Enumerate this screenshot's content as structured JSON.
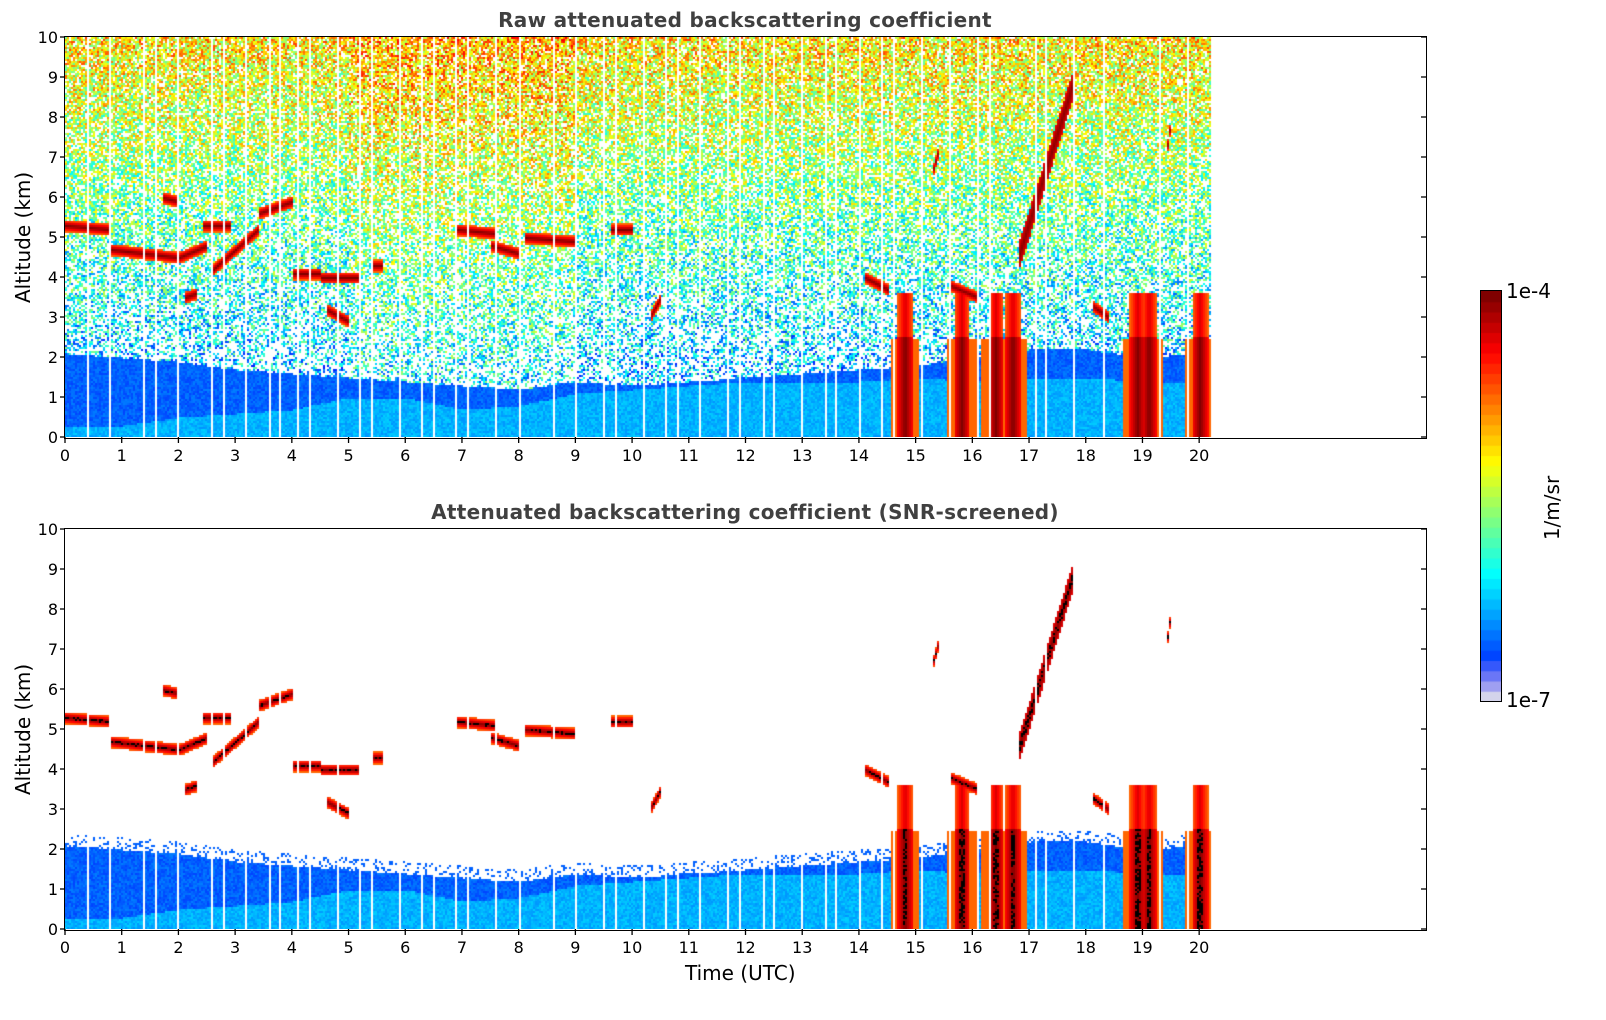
{
  "chart_data": [
    {
      "type": "heatmap",
      "id": "raw",
      "title": "Raw attenuated backscattering coefficient",
      "xlabel": "",
      "ylabel": "Altitude (km)",
      "xlim": [
        0,
        24
      ],
      "ylim": [
        0,
        10
      ],
      "xticks": [
        "0",
        "1",
        "2",
        "3",
        "4",
        "5",
        "6",
        "7",
        "8",
        "9",
        "10",
        "11",
        "12",
        "13",
        "14",
        "15",
        "16",
        "17",
        "18",
        "19",
        "20"
      ],
      "yticks": [
        "0",
        "1",
        "2",
        "3",
        "4",
        "5",
        "6",
        "7",
        "8",
        "9",
        "10"
      ],
      "data_end_hour": 20.2,
      "noise_background": true,
      "screened": false
    },
    {
      "type": "heatmap",
      "id": "snr",
      "title": "Attenuated backscattering coefficient (SNR-screened)",
      "xlabel": "Time (UTC)",
      "ylabel": "Altitude (km)",
      "xlim": [
        0,
        24
      ],
      "ylim": [
        0,
        10
      ],
      "xticks": [
        "0",
        "1",
        "2",
        "3",
        "4",
        "5",
        "6",
        "7",
        "8",
        "9",
        "10",
        "11",
        "12",
        "13",
        "14",
        "15",
        "16",
        "17",
        "18",
        "19",
        "20"
      ],
      "yticks": [
        "0",
        "1",
        "2",
        "3",
        "4",
        "5",
        "6",
        "7",
        "8",
        "9",
        "10"
      ],
      "data_end_hour": 20.2,
      "noise_background": false,
      "screened": true
    }
  ],
  "colorbar": {
    "label": "1/m/sr",
    "max_label": "1e-4",
    "min_label": "1e-7",
    "scale": "log",
    "range": [
      1e-07,
      0.0001
    ],
    "colormap": "jet"
  },
  "features": {
    "boundary_layer_top_km": [
      [
        0,
        2.1
      ],
      [
        1,
        2.0
      ],
      [
        2,
        1.9
      ],
      [
        3,
        1.7
      ],
      [
        4,
        1.6
      ],
      [
        5,
        1.5
      ],
      [
        6,
        1.4
      ],
      [
        7,
        1.3
      ],
      [
        8,
        1.2
      ],
      [
        9,
        1.4
      ],
      [
        10,
        1.3
      ],
      [
        11,
        1.4
      ],
      [
        12,
        1.5
      ],
      [
        13,
        1.6
      ],
      [
        14,
        1.7
      ],
      [
        15,
        1.8
      ],
      [
        16,
        2.0
      ],
      [
        17,
        2.2
      ],
      [
        18,
        2.2
      ],
      [
        19,
        2.0
      ],
      [
        20,
        2.1
      ],
      [
        20.2,
        2.1
      ]
    ],
    "aerosol_top_km": [
      [
        0,
        0.3
      ],
      [
        1,
        0.3
      ],
      [
        2,
        0.5
      ],
      [
        3,
        0.6
      ],
      [
        4,
        0.7
      ],
      [
        5,
        1.0
      ],
      [
        6,
        1.0
      ],
      [
        7,
        0.7
      ],
      [
        8,
        0.8
      ],
      [
        9,
        1.1
      ],
      [
        10,
        1.2
      ],
      [
        11,
        1.3
      ],
      [
        12,
        1.4
      ],
      [
        13,
        1.4
      ],
      [
        14,
        1.4
      ],
      [
        15,
        1.5
      ],
      [
        16,
        1.4
      ],
      [
        17,
        1.5
      ],
      [
        18,
        1.5
      ],
      [
        19,
        1.4
      ],
      [
        20,
        1.4
      ]
    ],
    "cloud_segments": [
      {
        "t": [
          0.0,
          0.8
        ],
        "alt": [
          5.3,
          5.2
        ]
      },
      {
        "t": [
          0.8,
          2.0
        ],
        "alt": [
          4.7,
          4.5
        ]
      },
      {
        "t": [
          1.7,
          2.0
        ],
        "alt": [
          6.0,
          5.9
        ]
      },
      {
        "t": [
          2.0,
          2.5
        ],
        "alt": [
          4.5,
          4.8
        ]
      },
      {
        "t": [
          2.4,
          2.9
        ],
        "alt": [
          5.3,
          5.3
        ]
      },
      {
        "t": [
          2.6,
          3.4
        ],
        "alt": [
          4.2,
          5.2
        ]
      },
      {
        "t": [
          3.4,
          4.0
        ],
        "alt": [
          5.6,
          5.9
        ]
      },
      {
        "t": [
          2.1,
          2.3
        ],
        "alt": [
          3.5,
          3.6
        ]
      },
      {
        "t": [
          4.0,
          4.5
        ],
        "alt": [
          4.1,
          4.1
        ]
      },
      {
        "t": [
          4.5,
          5.2
        ],
        "alt": [
          4.0,
          4.0
        ]
      },
      {
        "t": [
          4.6,
          5.0
        ],
        "alt": [
          3.2,
          2.9
        ]
      },
      {
        "t": [
          5.4,
          5.6
        ],
        "alt": [
          4.3,
          4.3
        ]
      },
      {
        "t": [
          6.9,
          7.6
        ],
        "alt": [
          5.2,
          5.1
        ]
      },
      {
        "t": [
          7.5,
          8.0
        ],
        "alt": [
          4.8,
          4.6
        ]
      },
      {
        "t": [
          8.1,
          9.0
        ],
        "alt": [
          5.0,
          4.9
        ]
      },
      {
        "t": [
          9.6,
          10.0
        ],
        "alt": [
          5.2,
          5.2
        ]
      },
      {
        "t": [
          10.3,
          10.5
        ],
        "alt": [
          3.0,
          3.5
        ]
      },
      {
        "t": [
          14.1,
          14.5
        ],
        "alt": [
          4.0,
          3.7
        ]
      },
      {
        "t": [
          15.6,
          16.1
        ],
        "alt": [
          3.8,
          3.5
        ]
      },
      {
        "t": [
          15.3,
          15.4
        ],
        "alt": [
          6.7,
          7.2
        ]
      },
      {
        "t": [
          18.1,
          18.4
        ],
        "alt": [
          3.3,
          3.0
        ]
      },
      {
        "t": [
          19.4,
          19.5
        ],
        "alt": [
          7.0,
          8.0
        ]
      }
    ],
    "rising_plume": {
      "t": [
        16.8,
        17.8
      ],
      "alt": [
        4.5,
        9.0
      ]
    },
    "precip_columns_hours": [
      14.8,
      15.8,
      16.4,
      16.7,
      18.9,
      19.1,
      20.0
    ],
    "data_gaps_hours": [
      0.4,
      0.8,
      1.4,
      1.6,
      2.0,
      2.6,
      2.8,
      3.2,
      3.6,
      3.8,
      4.1,
      4.3,
      4.8,
      5.2,
      5.4,
      5.9,
      6.3,
      6.5,
      6.9,
      7.1,
      7.6,
      8.0,
      8.6,
      9.0,
      9.5,
      9.7,
      10.2,
      10.6,
      10.8,
      11.2,
      11.7,
      11.9,
      12.3,
      12.5,
      13.0,
      13.4,
      13.6,
      14.0,
      14.4,
      14.6,
      15.1,
      15.6,
      16.1,
      16.3,
      17.1,
      17.3,
      17.8,
      18.3,
      19.3,
      19.8
    ]
  }
}
